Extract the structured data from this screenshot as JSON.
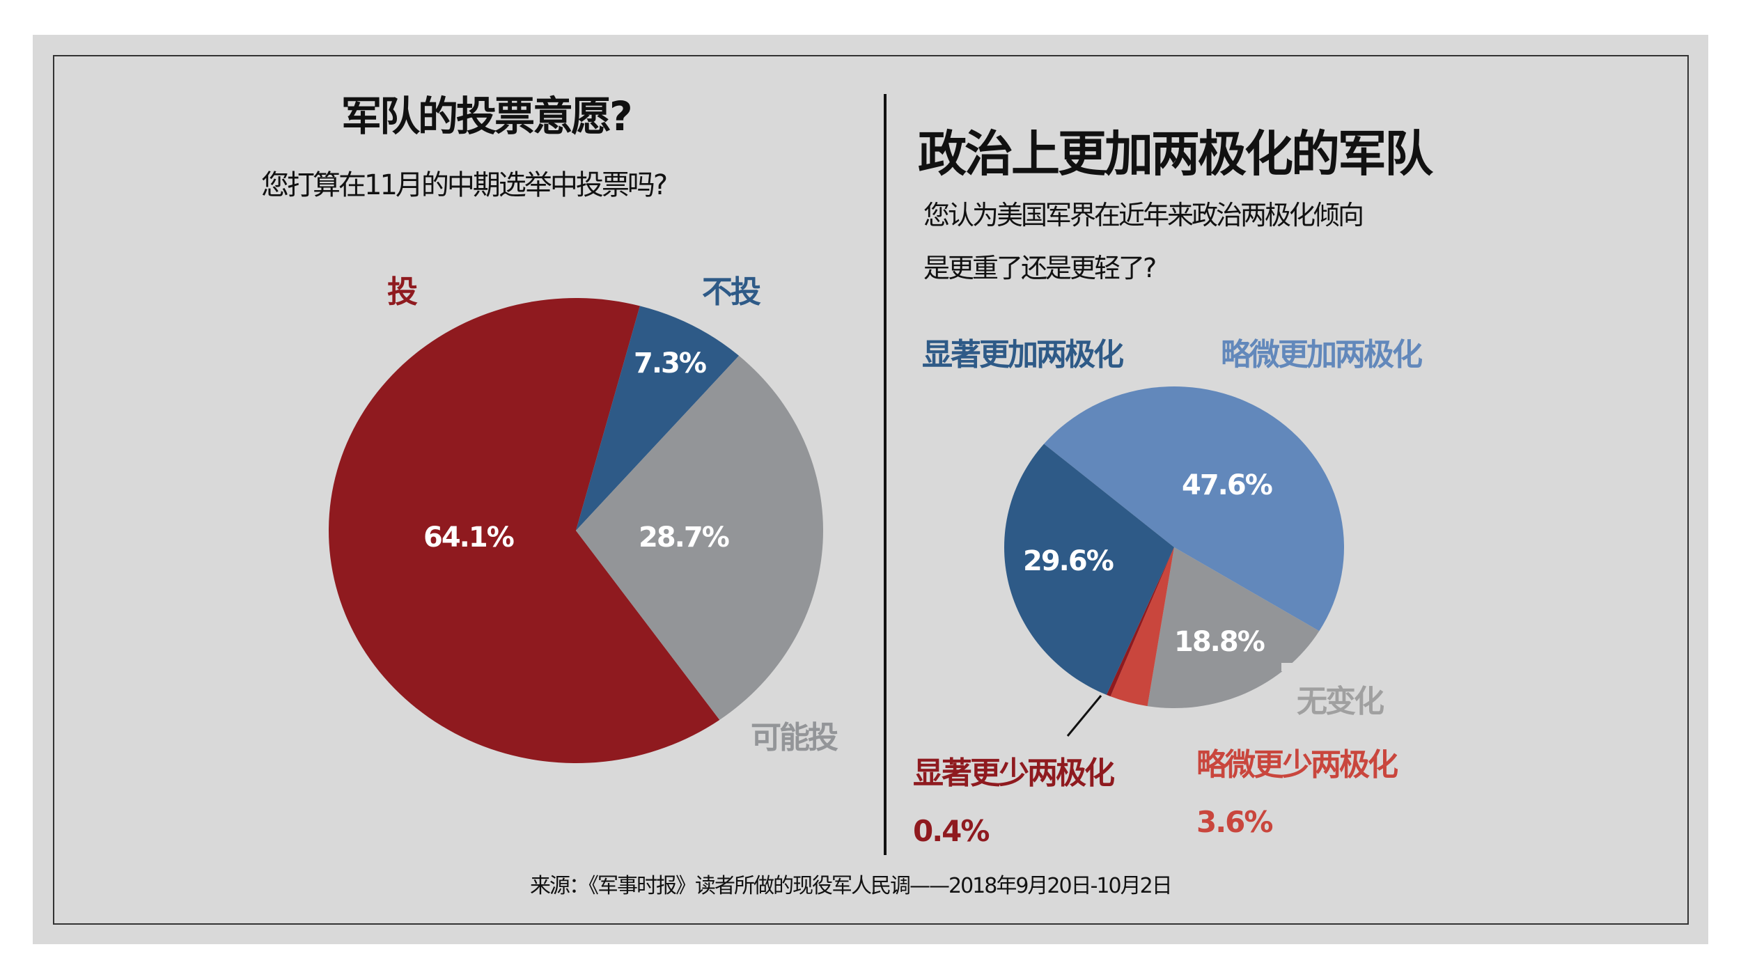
{
  "colors": {
    "background": "#d9d9d9",
    "vote": "#8f1a1f",
    "not_vote": "#2e5a87",
    "maybe": "#939598",
    "much_more": "#2e5a87",
    "somewhat_more": "#6288bb",
    "no_change": "#939598",
    "somewhat_less": "#c9463d",
    "much_less": "#8f1a1f"
  },
  "left_panel": {
    "title": "军队的投票意愿?",
    "subtitle": "您打算在11月的中期选举中投票吗?",
    "labels": {
      "vote": "投",
      "not_vote": "不投",
      "maybe": "可能投"
    },
    "values": {
      "vote": "64.1%",
      "not_vote": "7.3%",
      "maybe": "28.7%"
    }
  },
  "right_panel": {
    "title": "政治上更加两极化的军队",
    "subtitle_line1": "您认为美国军界在近年来政治两极化倾向",
    "subtitle_line2": "是更重了还是更轻了?",
    "labels": {
      "much_more": "显著更加两极化",
      "somewhat_more": "略微更加两极化",
      "no_change": "无变化",
      "much_less": "显著更少两极化",
      "somewhat_less": "略微更少两极化"
    },
    "values": {
      "much_more": "29.6%",
      "somewhat_more": "47.6%",
      "no_change": "18.8%",
      "much_less": "0.4%",
      "somewhat_less": "3.6%"
    }
  },
  "source": "来源：《军事时报》读者所做的现役军人民调——2018年9月20日-10月2日",
  "chart_data": [
    {
      "type": "pie",
      "title": "军队的投票意愿?",
      "subtitle": "您打算在11月的中期选举中投票吗?",
      "categories": [
        "投",
        "不投",
        "可能投"
      ],
      "values": [
        64.1,
        7.3,
        28.7
      ],
      "colors": [
        "#8f1a1f",
        "#2e5a87",
        "#939598"
      ],
      "unit": "%"
    },
    {
      "type": "pie",
      "title": "政治上更加两极化的军队",
      "subtitle": "您认为美国军界在近年来政治两极化倾向是更重了还是更轻了?",
      "categories": [
        "略微更加两极化",
        "无变化",
        "略微更少两极化",
        "显著更少两极化",
        "显著更加两极化"
      ],
      "values": [
        47.6,
        18.8,
        3.6,
        0.4,
        29.6
      ],
      "colors": [
        "#6288bb",
        "#939598",
        "#c9463d",
        "#8f1a1f",
        "#2e5a87"
      ],
      "unit": "%"
    }
  ]
}
